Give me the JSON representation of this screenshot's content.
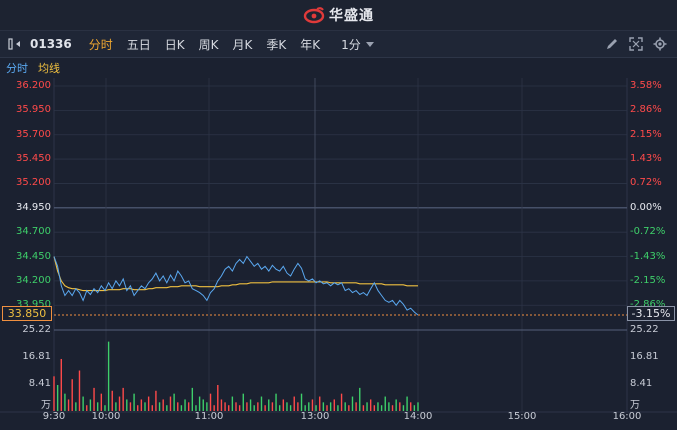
{
  "app": {
    "brand": "华盛通"
  },
  "toolbar": {
    "stock_code": "01336",
    "tabs": [
      {
        "label": "分时",
        "active": true
      },
      {
        "label": "五日",
        "active": false
      },
      {
        "label": "日K",
        "active": false
      },
      {
        "label": "周K",
        "active": false
      },
      {
        "label": "月K",
        "active": false
      },
      {
        "label": "季K",
        "active": false
      },
      {
        "label": "年K",
        "active": false
      }
    ],
    "period": "1分",
    "icons": [
      "pencil-icon",
      "fullscreen-icon",
      "settings-icon"
    ]
  },
  "legend": {
    "fenshi": "分时",
    "junxian": "均线"
  },
  "colors": {
    "up": "#ff4a4a",
    "down": "#3ecf6a",
    "price_line": "#5aa8f0",
    "avg_line": "#f0c040",
    "background": "#1b2130"
  },
  "chart_data": {
    "type": "line",
    "prev_close": 34.95,
    "price_ticks": [
      "36.200",
      "35.950",
      "35.700",
      "35.450",
      "35.200",
      "34.950",
      "34.700",
      "34.450",
      "34.200",
      "33.950"
    ],
    "pct_ticks": [
      "3.58%",
      "2.86%",
      "2.15%",
      "1.43%",
      "0.72%",
      "0.00%",
      "-0.72%",
      "-1.43%",
      "-2.15%",
      "-2.86%"
    ],
    "current_price": "33.850",
    "current_pct": "-3.15%",
    "volume_ticks": [
      "25.22",
      "16.81",
      "8.41",
      "万"
    ],
    "time_ticks": [
      "9:30",
      "10:00",
      "11:00",
      "13:00",
      "14:00",
      "15:00",
      "16:00"
    ],
    "ylim": [
      33.85,
      36.2
    ],
    "price": [
      34.45,
      34.35,
      34.15,
      34.05,
      34.1,
      34.05,
      34.12,
      34.08,
      34.0,
      34.1,
      34.06,
      34.12,
      34.08,
      34.15,
      34.1,
      34.18,
      34.12,
      34.2,
      34.15,
      34.22,
      34.1,
      34.15,
      34.05,
      34.1,
      34.15,
      34.12,
      34.18,
      34.22,
      34.28,
      34.2,
      34.25,
      34.18,
      34.26,
      34.2,
      34.3,
      34.25,
      34.18,
      34.2,
      34.12,
      34.1,
      34.08,
      34.05,
      34.0,
      34.08,
      34.12,
      34.2,
      34.25,
      34.32,
      34.35,
      34.3,
      34.38,
      34.42,
      34.38,
      34.45,
      34.4,
      34.35,
      34.38,
      34.32,
      34.35,
      34.3,
      34.36,
      34.32,
      34.3,
      34.35,
      34.28,
      34.25,
      34.32,
      34.38,
      34.33,
      34.22,
      34.2,
      34.22,
      34.18,
      34.2,
      34.17,
      34.18,
      34.15,
      34.18,
      34.16,
      34.18,
      34.1,
      34.12,
      34.08,
      34.1,
      34.06,
      34.08,
      34.05,
      34.12,
      34.18,
      34.1,
      34.05,
      34.0,
      33.98,
      34.0,
      33.95,
      34.0,
      33.96,
      33.9,
      33.92,
      33.88,
      33.85
    ],
    "avg": [
      34.45,
      34.3,
      34.2,
      34.15,
      34.13,
      34.12,
      34.12,
      34.11,
      34.1,
      34.1,
      34.1,
      34.1,
      34.1,
      34.1,
      34.1,
      34.11,
      34.11,
      34.11,
      34.11,
      34.12,
      34.12,
      34.12,
      34.11,
      34.11,
      34.11,
      34.11,
      34.12,
      34.12,
      34.13,
      34.13,
      34.13,
      34.13,
      34.14,
      34.14,
      34.14,
      34.15,
      34.15,
      34.15,
      34.15,
      34.15,
      34.14,
      34.14,
      34.14,
      34.14,
      34.14,
      34.14,
      34.15,
      34.15,
      34.15,
      34.16,
      34.16,
      34.17,
      34.17,
      34.17,
      34.18,
      34.18,
      34.18,
      34.18,
      34.18,
      34.18,
      34.19,
      34.19,
      34.19,
      34.19,
      34.19,
      34.19,
      34.19,
      34.19,
      34.19,
      34.19,
      34.19,
      34.19,
      34.19,
      34.19,
      34.19,
      34.19,
      34.18,
      34.18,
      34.18,
      34.18,
      34.18,
      34.18,
      34.18,
      34.18,
      34.17,
      34.17,
      34.17,
      34.17,
      34.17,
      34.17,
      34.17,
      34.16,
      34.16,
      34.16,
      34.16,
      34.16,
      34.16,
      34.15,
      34.15,
      34.15,
      34.15
    ],
    "volume_max": 25.22,
    "volume": [
      12,
      9,
      18,
      6,
      4,
      11,
      3,
      14,
      5,
      2,
      4,
      8,
      3,
      6,
      2,
      24,
      7,
      3,
      5,
      8,
      4,
      3,
      6,
      2,
      4,
      3,
      5,
      2,
      7,
      3,
      4,
      2,
      5,
      6,
      3,
      2,
      4,
      3,
      8,
      2,
      5,
      4,
      3,
      6,
      2,
      9,
      4,
      3,
      2,
      5,
      3,
      2,
      6,
      3,
      4,
      2,
      3,
      5,
      2,
      4,
      3,
      6,
      2,
      4,
      3,
      2,
      5,
      3,
      6,
      2,
      3,
      4,
      2,
      5,
      3,
      2,
      3,
      4,
      2,
      6,
      3,
      2,
      5,
      3,
      8,
      2,
      3,
      4,
      2,
      3,
      2,
      5,
      3,
      2,
      4,
      3,
      2,
      5,
      3,
      2,
      3
    ],
    "volume_up": [
      1,
      0,
      1,
      0,
      1,
      1,
      0,
      1,
      0,
      1,
      0,
      1,
      0,
      1,
      0,
      0,
      1,
      0,
      1,
      1,
      0,
      1,
      0,
      1,
      1,
      0,
      1,
      1,
      1,
      0,
      1,
      0,
      1,
      0,
      1,
      0,
      0,
      1,
      0,
      0,
      0,
      0,
      0,
      1,
      1,
      1,
      1,
      1,
      1,
      0,
      1,
      1,
      0,
      1,
      0,
      0,
      1,
      0,
      1,
      0,
      1,
      0,
      0,
      1,
      0,
      0,
      1,
      1,
      0,
      0,
      0,
      1,
      0,
      1,
      0,
      1,
      0,
      1,
      0,
      1,
      0,
      1,
      0,
      1,
      0,
      1,
      0,
      1,
      1,
      0,
      0,
      0,
      0,
      1,
      0,
      1,
      0,
      0,
      1,
      0,
      0
    ]
  }
}
